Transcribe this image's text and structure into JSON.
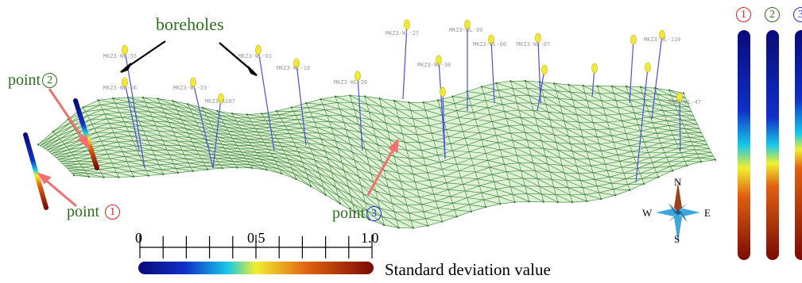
{
  "labels": {
    "boreholes": "boreholes",
    "point_word": "point",
    "point1_num": "1",
    "point2_num": "2",
    "point3_num": "3",
    "scale_title": "Standard deviation value"
  },
  "colorbar": {
    "ticks": [
      "0",
      "0.5",
      "1.0"
    ],
    "stops": [
      "#0a0a78",
      "#1030c8",
      "#18c8e8",
      "#f0f030",
      "#e06010",
      "#7a0a05"
    ]
  },
  "compass": {
    "n": "N",
    "s": "S",
    "e": "E",
    "w": "W"
  },
  "columns": [
    {
      "num": "1",
      "color": "#e02020"
    },
    {
      "num": "2",
      "color": "#2a6e1e"
    },
    {
      "num": "3",
      "color": "#1f2ed8"
    }
  ],
  "borehole_labels": [
    "MKZ3-WL-55",
    "MKZ3-WL-56",
    "MKZ3-WL-23",
    "MKZ3-WL-01",
    "MKZ3-WL-18",
    "MKZ3-WL-26",
    "MKZ3-WL-27",
    "MKZ3-WL-38",
    "MKZ3-WL-39",
    "MKZ3-WL-06",
    "MKZ3-WL-07",
    "MKZ3-A107",
    "MKZ3-WL-47",
    "MKZ3-WL-110"
  ],
  "colors": {
    "mesh_fill": "#d8efcc",
    "mesh_line": "#2f7a2f",
    "borehole": "#4a50d8",
    "marker": "#f2e83a",
    "arrow_black": "#000000",
    "arrow_red": "#f07070",
    "green_text": "#2a6e1e",
    "red_text": "#e02020",
    "blue_text": "#1f2ed8"
  }
}
